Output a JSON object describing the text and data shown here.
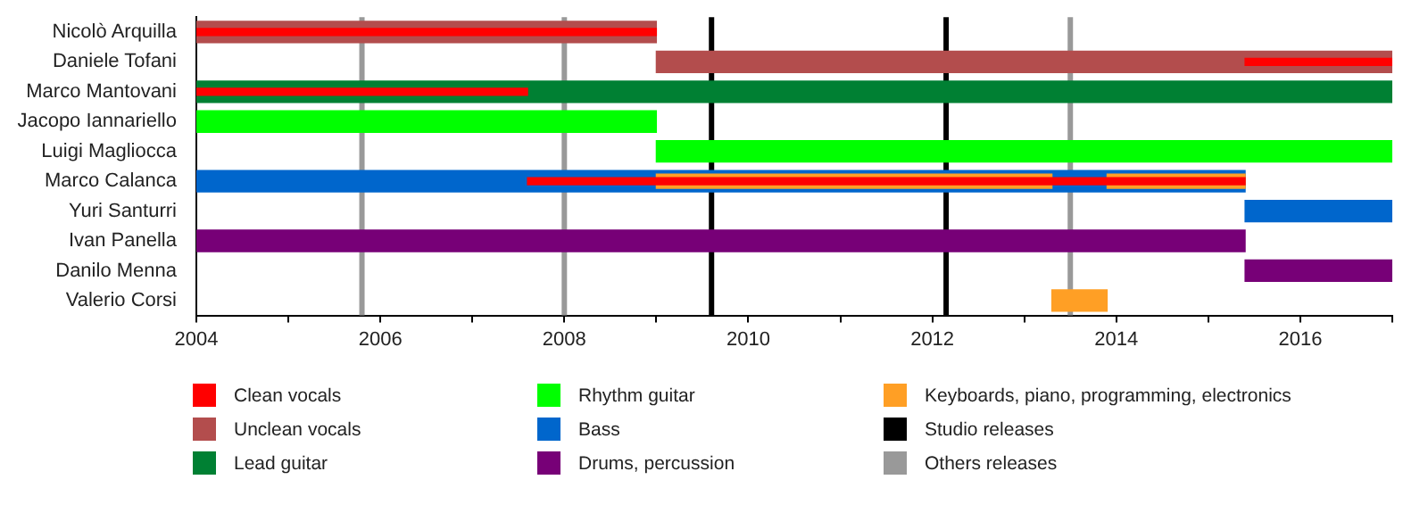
{
  "chart_data": {
    "type": "bar",
    "orientation": "horizontal",
    "categories": [
      "Nicolò Arquilla",
      "Daniele Tofani",
      "Marco Mantovani",
      "Jacopo Iannariello",
      "Luigi Magliocca",
      "Marco Calanca",
      "Yuri Santurri",
      "Ivan Panella",
      "Danilo Menna",
      "Valerio Corsi"
    ],
    "series": [
      {
        "name": "Clean vocals",
        "color": "#ff0000",
        "base": [
          2004,
          2015.4,
          2004,
          null,
          null,
          2007.6,
          null,
          null,
          null,
          null
        ],
        "values": [
          5,
          1.6,
          3.6,
          null,
          null,
          7.8,
          null,
          null,
          null,
          null
        ]
      },
      {
        "name": "Unclean vocals",
        "color": "#b34d4d",
        "base": [
          2004,
          2009,
          null,
          null,
          null,
          null,
          null,
          null,
          null,
          null
        ],
        "values": [
          5,
          8,
          null,
          null,
          null,
          null,
          null,
          null,
          null,
          null
        ]
      },
      {
        "name": "Lead guitar",
        "color": "#008033",
        "base": [
          null,
          null,
          2004,
          null,
          null,
          null,
          null,
          null,
          null,
          null
        ],
        "values": [
          null,
          null,
          13,
          null,
          null,
          null,
          null,
          null,
          null,
          null
        ]
      },
      {
        "name": "Rhythm guitar",
        "color": "#00ff00",
        "base": [
          null,
          null,
          null,
          2004,
          2009,
          null,
          null,
          null,
          null,
          null
        ],
        "values": [
          null,
          null,
          null,
          5,
          8,
          null,
          null,
          null,
          null,
          null
        ]
      },
      {
        "name": "Bass",
        "color": "#0066cc",
        "base": [
          null,
          null,
          null,
          null,
          null,
          2004,
          2015.4,
          null,
          null,
          null
        ],
        "values": [
          null,
          null,
          null,
          null,
          null,
          11.4,
          1.6,
          null,
          null,
          null
        ]
      },
      {
        "name": "Drums, percussion",
        "color": "#770077",
        "base": [
          null,
          null,
          null,
          null,
          null,
          null,
          null,
          2004,
          2015.4,
          null
        ],
        "values": [
          null,
          null,
          null,
          null,
          null,
          null,
          null,
          11.4,
          1.6,
          null
        ]
      },
      {
        "name": "Keyboards, piano, programming, electronics",
        "color": "#ff9f25",
        "base": [
          null,
          null,
          null,
          null,
          null,
          null,
          null,
          null,
          null,
          2013.3
        ],
        "values": [
          null,
          null,
          null,
          null,
          null,
          null,
          null,
          null,
          null,
          0.6
        ]
      },
      {
        "color": "#ff9f25",
        "base": [
          null,
          null,
          null,
          null,
          null,
          2009,
          null,
          null,
          null,
          null
        ],
        "values": [
          null,
          null,
          null,
          null,
          null,
          4.3,
          null,
          null,
          null,
          null
        ]
      },
      {
        "color": "#ff9f25",
        "base": [
          null,
          null,
          null,
          null,
          null,
          2013.9,
          null,
          null,
          null,
          null
        ],
        "values": [
          null,
          null,
          null,
          null,
          null,
          1.5,
          null,
          null,
          null,
          null
        ]
      }
    ],
    "xlim": [
      2004,
      2017
    ],
    "xticks": [
      2004,
      {
        "value": 2005,
        "label": null
      },
      2006,
      {
        "value": 2007,
        "label": null
      },
      2008,
      {
        "value": 2009,
        "label": null
      },
      2010,
      {
        "value": 2011,
        "label": null
      },
      2012,
      {
        "value": 2013,
        "label": null
      },
      2014,
      {
        "value": 2015,
        "label": null
      },
      2016,
      {
        "value": 2017,
        "label": null
      }
    ],
    "ref_lines": [
      {
        "axis": "x",
        "value": 2009.6,
        "label": "Studio releases",
        "color": "#000000"
      },
      {
        "axis": "x",
        "value": 2012.15,
        "color": "#000000"
      },
      {
        "axis": "x",
        "value": 2005.8,
        "label": "Others releases",
        "color": "#999999"
      },
      {
        "axis": "x",
        "value": 2008,
        "color": "#999999"
      },
      {
        "axis": "x",
        "value": 2013.5,
        "color": "#999999"
      }
    ],
    "grid": false,
    "legend": "bottom"
  }
}
